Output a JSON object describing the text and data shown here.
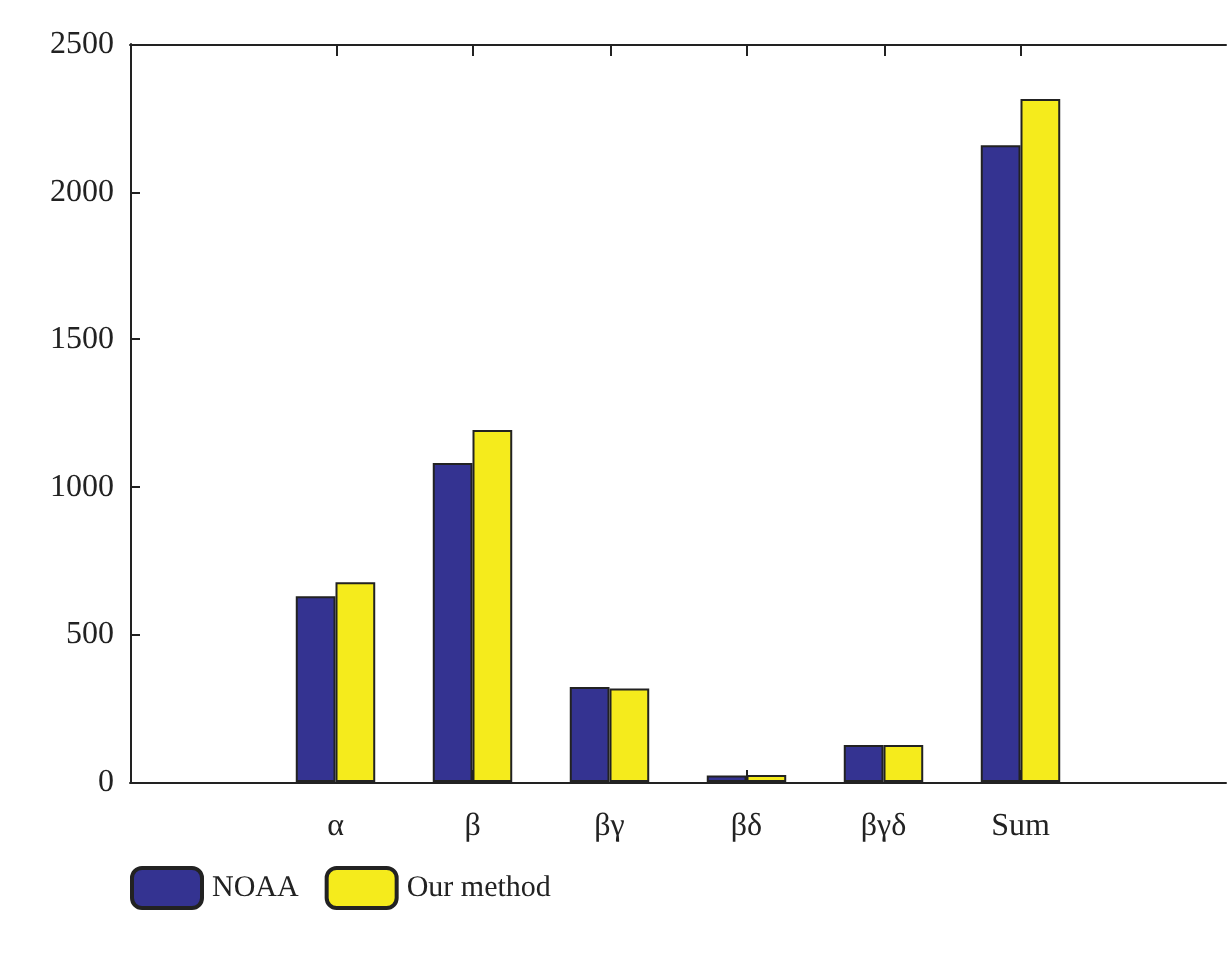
{
  "chart_data": {
    "type": "bar",
    "categories": [
      null,
      "α",
      "β",
      "βγ",
      "βδ",
      "βγδ",
      "Sum",
      null
    ],
    "series": [
      {
        "name": "NOAA",
        "color": "#343391",
        "values": [
          null,
          629,
          1081,
          322,
          22,
          125,
          2157,
          null
        ]
      },
      {
        "name": "Our method",
        "color": "#f5eb1c",
        "values": [
          null,
          677,
          1192,
          317,
          24,
          125,
          2314,
          null
        ]
      }
    ],
    "ylim": [
      0,
      2500
    ],
    "yticks": [
      0,
      500,
      1000,
      1500,
      2000,
      2500
    ],
    "grid": false,
    "legend": "bottom left"
  }
}
